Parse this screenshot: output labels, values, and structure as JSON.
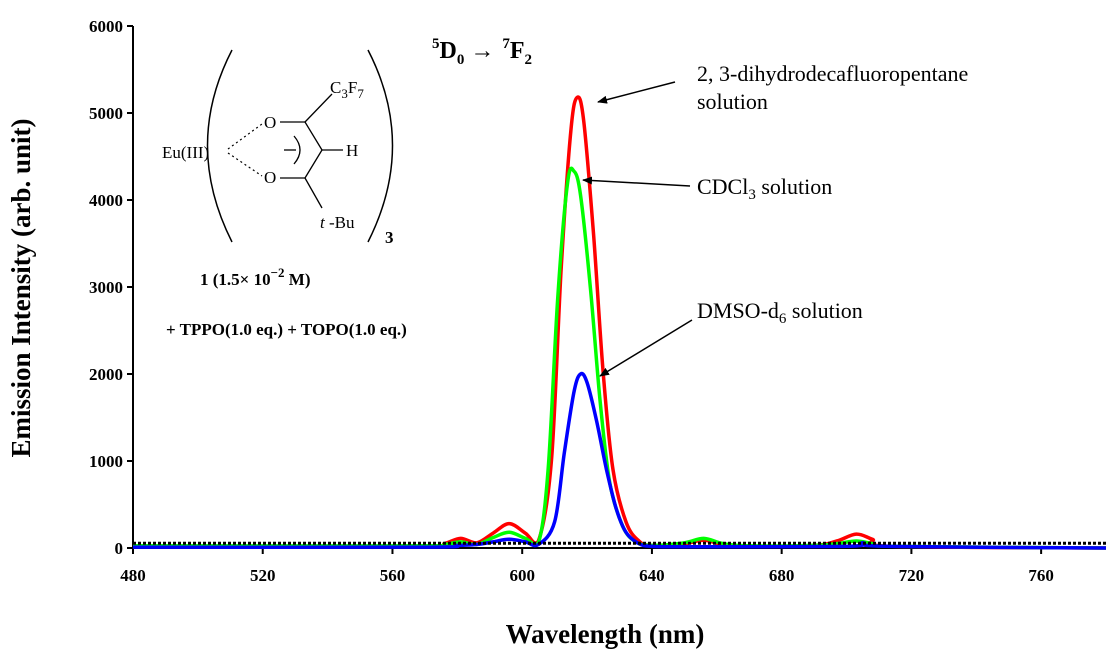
{
  "chart_data": {
    "type": "line",
    "xlabel": "Wavelength (nm)",
    "ylabel": "Emission Intensity (arb. unit)",
    "xlim": [
      480,
      780
    ],
    "ylim": [
      0,
      6000
    ],
    "x_ticks": [
      "480",
      "520",
      "560",
      "600",
      "640",
      "680",
      "720",
      "760"
    ],
    "y_ticks": [
      "0",
      "1000",
      "2000",
      "3000",
      "4000",
      "5000",
      "6000"
    ],
    "grid": false,
    "transition": {
      "upper_sup": "5",
      "upper_main": "D",
      "upper_sub": "0",
      "arrow": "→",
      "lower_sup": "7",
      "lower_main": "F",
      "lower_sub": "2"
    },
    "series": [
      {
        "color": "#ff0000",
        "x": [
          480,
          570,
          576,
          581,
          586,
          591,
          596,
          601,
          605,
          609,
          612,
          615,
          617,
          619,
          622,
          625,
          628,
          632,
          636,
          640,
          650,
          656,
          662,
          670,
          690,
          697,
          703,
          708,
          714,
          780
        ],
        "y": [
          15,
          20,
          50,
          110,
          60,
          170,
          280,
          170,
          80,
          1000,
          3200,
          4800,
          5180,
          4900,
          3600,
          2000,
          900,
          300,
          80,
          30,
          50,
          90,
          40,
          20,
          30,
          80,
          160,
          100,
          20,
          0
        ]
      },
      {
        "color": "#00ff00",
        "x": [
          480,
          570,
          576,
          581,
          586,
          591,
          596,
          601,
          605,
          608,
          611,
          614,
          616,
          618,
          621,
          624,
          627,
          631,
          635,
          640,
          650,
          656,
          662,
          670,
          690,
          697,
          703,
          708,
          714,
          780
        ],
        "y": [
          25,
          25,
          40,
          70,
          40,
          120,
          180,
          110,
          60,
          900,
          2900,
          4200,
          4330,
          4050,
          3000,
          1700,
          750,
          250,
          70,
          30,
          60,
          110,
          50,
          25,
          30,
          50,
          80,
          50,
          20,
          0
        ]
      },
      {
        "color": "#0000ff",
        "x": [
          480,
          570,
          580,
          586,
          591,
          596,
          601,
          605,
          610,
          613,
          616,
          618,
          620,
          623,
          626,
          629,
          632,
          636,
          640,
          650,
          700,
          705,
          712,
          780
        ],
        "y": [
          10,
          10,
          30,
          40,
          70,
          100,
          70,
          40,
          300,
          1100,
          1800,
          2000,
          1900,
          1450,
          900,
          450,
          180,
          50,
          20,
          15,
          20,
          60,
          20,
          0
        ]
      },
      {
        "color": "#000000",
        "dashed": true,
        "x": [
          480,
          780
        ],
        "y": [
          55,
          55
        ]
      }
    ],
    "annotations": [
      {
        "parts": [
          "2, 3-dihydrodecafluoropentane"
        ]
      },
      {
        "parts": [
          "solution"
        ]
      },
      {
        "parts": [
          "CDCl",
          "3",
          " solution"
        ]
      },
      {
        "parts": [
          "DMSO-d",
          "6",
          " solution"
        ]
      }
    ]
  },
  "structure": {
    "metal": "Eu(III)",
    "o_top": "O",
    "o_bottom": "O",
    "h": "H",
    "c3f7_main": "C",
    "c3f7_sub1": "3",
    "c3f7_mid": "F",
    "c3f7_sub2": "7",
    "tbu_italic": "t",
    "tbu_rest": " -Bu",
    "n": "3",
    "compound_prefix": "1 (1.5",
    "compound_times": "×",
    "compound_ten": " 10",
    "compound_exp": "−2",
    "compound_suffix": " M)",
    "additive": "+ TPPO(1.0 eq.) + TOPO(1.0 eq.)"
  }
}
